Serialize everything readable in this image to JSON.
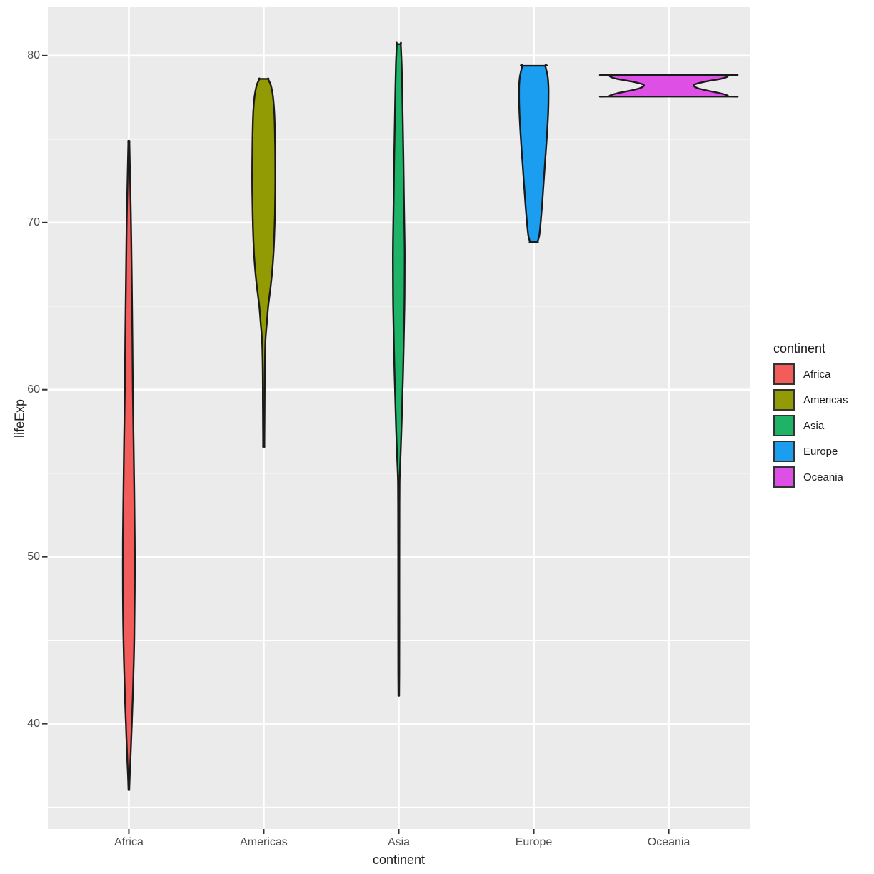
{
  "figure": {
    "xlabel": "continent",
    "ylabel": "lifeExp",
    "panel_bg": "#EBEBEB",
    "grid_color": "#FFFFFF",
    "tick_color": "#333333",
    "tick_text_color": "#4D4D4D",
    "outline_color": "#1A1A1A"
  },
  "legend": {
    "title": "continent",
    "position": "right"
  },
  "chart_data": {
    "type": "violin",
    "title": "",
    "xlabel": "continent",
    "ylabel": "lifeExp",
    "categories": [
      "Africa",
      "Americas",
      "Asia",
      "Europe",
      "Oceania"
    ],
    "y_major_ticks": [
      40,
      50,
      60,
      70,
      80
    ],
    "y_minor_ticks": [
      35,
      45,
      55,
      65,
      75
    ],
    "ylim": [
      33.7,
      82.9
    ],
    "grid": true,
    "legend_position": "right",
    "band_max_width_frac": 0.9,
    "series": [
      {
        "name": "Africa",
        "color": "#F25C5A",
        "y_min": 36.1,
        "y_max": 74.8,
        "profile": [
          [
            74.77,
            0.008
          ],
          [
            73,
            0.017
          ],
          [
            70,
            0.032
          ],
          [
            67,
            0.042
          ],
          [
            63,
            0.053
          ],
          [
            60,
            0.059
          ],
          [
            57,
            0.07
          ],
          [
            54,
            0.08
          ],
          [
            51,
            0.088
          ],
          [
            48,
            0.088
          ],
          [
            45,
            0.08
          ],
          [
            42,
            0.061
          ],
          [
            40,
            0.044
          ],
          [
            38,
            0.025
          ],
          [
            36.9,
            0.013
          ],
          [
            36.09,
            0.006
          ]
        ]
      },
      {
        "name": "Americas",
        "color": "#939B04",
        "y_min": 56.7,
        "y_max": 78.6,
        "profile": [
          [
            78.61,
            0.063
          ],
          [
            78.2,
            0.106
          ],
          [
            77.5,
            0.138
          ],
          [
            76.5,
            0.157
          ],
          [
            75,
            0.167
          ],
          [
            73.5,
            0.171
          ],
          [
            72,
            0.171
          ],
          [
            70.5,
            0.165
          ],
          [
            69,
            0.154
          ],
          [
            68,
            0.142
          ],
          [
            67,
            0.123
          ],
          [
            66,
            0.097
          ],
          [
            65,
            0.066
          ],
          [
            64,
            0.046
          ],
          [
            63,
            0.026
          ],
          [
            61.5,
            0.016
          ],
          [
            59.5,
            0.013
          ],
          [
            58,
            0.011
          ],
          [
            56.67,
            0.009
          ]
        ]
      },
      {
        "name": "Asia",
        "color": "#1EB467",
        "y_min": 41.8,
        "y_max": 80.7,
        "profile": [
          [
            80.69,
            0.03
          ],
          [
            79.5,
            0.042
          ],
          [
            78,
            0.051
          ],
          [
            76,
            0.059
          ],
          [
            74,
            0.068
          ],
          [
            72,
            0.074
          ],
          [
            70,
            0.081
          ],
          [
            68.5,
            0.087
          ],
          [
            67,
            0.087
          ],
          [
            65,
            0.084
          ],
          [
            63,
            0.074
          ],
          [
            61,
            0.063
          ],
          [
            59.5,
            0.053
          ],
          [
            58,
            0.042
          ],
          [
            56.5,
            0.03
          ],
          [
            55.5,
            0.02
          ],
          [
            54.5,
            0.012
          ],
          [
            53,
            0.009
          ],
          [
            50,
            0.008
          ],
          [
            46,
            0.008
          ],
          [
            43,
            0.007
          ],
          [
            41.76,
            0.005
          ]
        ]
      },
      {
        "name": "Europe",
        "color": "#1B9EF0",
        "y_min": 68.8,
        "y_max": 79.4,
        "profile": [
          [
            79.39,
            0.169
          ],
          [
            78.8,
            0.204
          ],
          [
            78.2,
            0.217
          ],
          [
            77.4,
            0.218
          ],
          [
            76.5,
            0.212
          ],
          [
            75.5,
            0.199
          ],
          [
            74.5,
            0.183
          ],
          [
            73.5,
            0.165
          ],
          [
            72.5,
            0.148
          ],
          [
            71.5,
            0.131
          ],
          [
            70.5,
            0.112
          ],
          [
            69.8,
            0.097
          ],
          [
            69.2,
            0.08
          ],
          [
            68.84,
            0.055
          ]
        ]
      },
      {
        "name": "Oceania",
        "color": "#DE50E5",
        "y_min": 77.6,
        "y_max": 78.8,
        "profile": [
          [
            78.83,
            0.889
          ],
          [
            78.72,
            0.86
          ],
          [
            78.6,
            0.76
          ],
          [
            78.45,
            0.55
          ],
          [
            78.3,
            0.4
          ],
          [
            78.19,
            0.37
          ],
          [
            78.05,
            0.43
          ],
          [
            77.9,
            0.58
          ],
          [
            77.75,
            0.76
          ],
          [
            77.63,
            0.86
          ],
          [
            77.55,
            0.889
          ]
        ]
      }
    ]
  }
}
